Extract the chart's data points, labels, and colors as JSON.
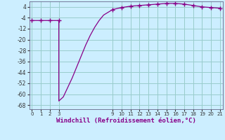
{
  "x": [
    0,
    1,
    2,
    3,
    3,
    3.5,
    4,
    4.5,
    5,
    5.5,
    6,
    6.5,
    7,
    7.5,
    8,
    8.5,
    9,
    10,
    11,
    12,
    13,
    14,
    15,
    16,
    17,
    18,
    19,
    20,
    21
  ],
  "y": [
    -6,
    -6,
    -6,
    -6,
    -65,
    -62,
    -55,
    -48,
    -40,
    -32,
    -24,
    -17,
    -11,
    -6,
    -2,
    0,
    2,
    3.5,
    4.5,
    5,
    5.5,
    6,
    6.5,
    6.5,
    6,
    5,
    4,
    3.5,
    3
  ],
  "line_color": "#880088",
  "marker": "+",
  "marker_x": [
    0,
    1,
    2,
    3,
    9,
    10,
    11,
    12,
    13,
    14,
    15,
    16,
    17,
    18,
    19,
    20,
    21
  ],
  "marker_y": [
    -6,
    -6,
    -6,
    -6,
    2,
    3.5,
    4.5,
    5,
    5.5,
    6,
    6.5,
    6.5,
    6,
    5,
    4,
    3.5,
    3
  ],
  "bg_color": "#cceeff",
  "grid_color": "#99cccc",
  "xlabel": "Windchill (Refroidissement éolien,°C)",
  "xlabel_fontsize": 6.5,
  "xticks": [
    0,
    1,
    2,
    3,
    9,
    10,
    11,
    12,
    13,
    14,
    15,
    16,
    17,
    18,
    19,
    20,
    21
  ],
  "yticks": [
    4,
    -4,
    -12,
    -20,
    -28,
    -36,
    -44,
    -52,
    -60,
    -68
  ],
  "ylim": [
    -71,
    8
  ],
  "xlim": [
    -0.3,
    21.3
  ]
}
